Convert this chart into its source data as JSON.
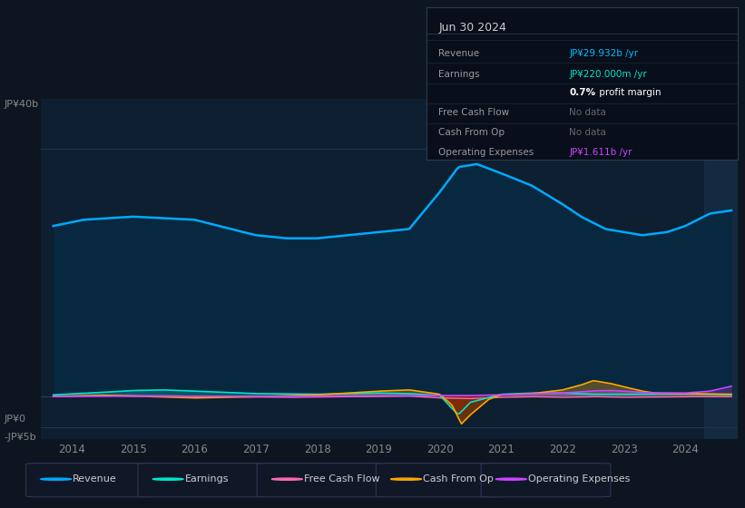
{
  "bg_color": "#0d1520",
  "plot_bg_color": "#0d1f30",
  "title": "Jun 30 2024",
  "ylim": [
    -7000000000.0,
    48000000000.0
  ],
  "xlim": [
    2013.5,
    2024.85
  ],
  "xticks": [
    2014,
    2015,
    2016,
    2017,
    2018,
    2019,
    2020,
    2021,
    2022,
    2023,
    2024
  ],
  "revenue_color": "#00aaff",
  "earnings_color": "#00e5cc",
  "fcf_color": "#ff69b4",
  "cashfromop_color": "#ffa500",
  "opex_color": "#cc44ff",
  "revenue_fill_color": "#0a3a5c",
  "legend": [
    {
      "label": "Revenue",
      "color": "#00aaff"
    },
    {
      "label": "Earnings",
      "color": "#00e5cc"
    },
    {
      "label": "Free Cash Flow",
      "color": "#ff69b4"
    },
    {
      "label": "Cash From Op",
      "color": "#ffa500"
    },
    {
      "label": "Operating Expenses",
      "color": "#cc44ff"
    }
  ],
  "info_rows": [
    {
      "label": "Revenue",
      "value": "JP¥29.932b /yr",
      "value_color": "#00bfff",
      "label_color": "#999999"
    },
    {
      "label": "Earnings",
      "value": "JP¥220.000m /yr",
      "value_color": "#00e5cc",
      "label_color": "#999999"
    },
    {
      "label": "",
      "value": "0.7% profit margin",
      "value_color": "#ffffff",
      "label_color": "#999999"
    },
    {
      "label": "Free Cash Flow",
      "value": "No data",
      "value_color": "#666666",
      "label_color": "#999999"
    },
    {
      "label": "Cash From Op",
      "value": "No data",
      "value_color": "#666666",
      "label_color": "#999999"
    },
    {
      "label": "Operating Expenses",
      "value": "JP¥1.611b /yr",
      "value_color": "#cc44ff",
      "label_color": "#999999"
    }
  ]
}
